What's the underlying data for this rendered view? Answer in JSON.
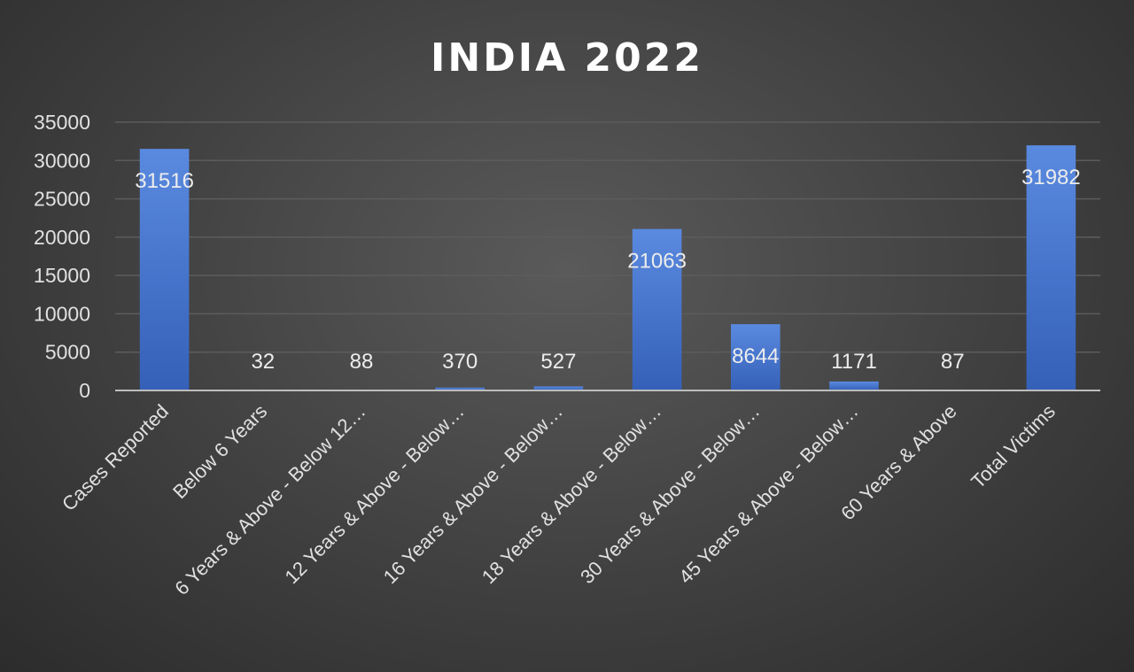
{
  "chart_data": {
    "type": "bar",
    "title": "INDIA 2022",
    "categories": [
      "Cases Reported",
      "Below 6 Years",
      "6 Years & Above - Below 12…",
      "12 Years & Above - Below…",
      "16 Years & Above - Below…",
      "18 Years & Above - Below…",
      "30 Years & Above - Below…",
      "45 Years & Above - Below…",
      "60 Years & Above",
      "Total Victims"
    ],
    "values": [
      31516,
      32,
      88,
      370,
      527,
      21063,
      8644,
      1171,
      87,
      31982
    ],
    "data_labels": [
      "31516",
      "32",
      "88",
      "370",
      "527",
      "21063",
      "8644",
      "1171",
      "87",
      "31982"
    ],
    "ylim": [
      0,
      35000
    ],
    "y_ticks": [
      0,
      5000,
      10000,
      15000,
      20000,
      25000,
      30000,
      35000
    ],
    "y_tick_labels": [
      "0",
      "5000",
      "10000",
      "15000",
      "20000",
      "25000",
      "30000",
      "35000"
    ],
    "grid": true,
    "legend": "none",
    "bar_color": "#4472c4"
  }
}
